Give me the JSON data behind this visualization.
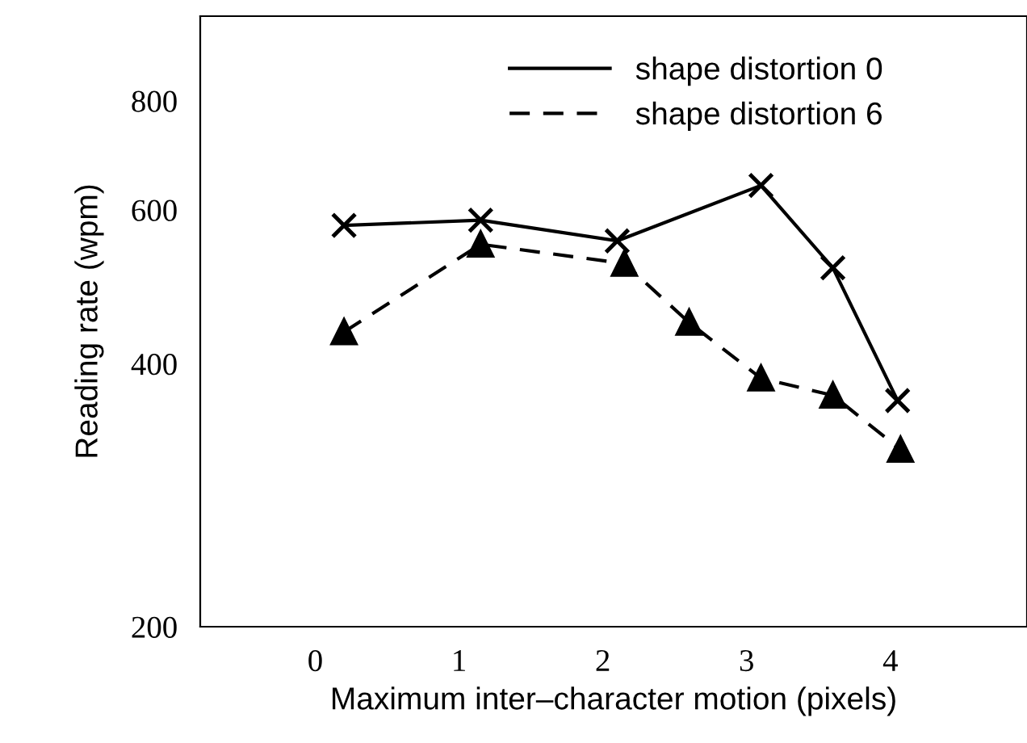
{
  "chart_data": {
    "type": "line",
    "xlabel": "Maximum inter–character motion (pixels)",
    "ylabel": "Reading rate (wpm)",
    "log": "y",
    "xlim": [
      -0.8,
      4.95
    ],
    "ylim": [
      200,
      1000
    ],
    "xticks": [
      0,
      1,
      2,
      3,
      4
    ],
    "yticks": [
      200,
      400,
      600,
      800
    ],
    "grid": false,
    "legend": "top",
    "series": [
      {
        "name": "shape distortion 0",
        "color": "#000000",
        "marker": "cross",
        "line_style": "solid",
        "x": [
          0.2,
          1.15,
          2.1,
          3.1,
          3.6,
          4.05
        ],
        "values": [
          576,
          584,
          553,
          640,
          515,
          363
        ]
      },
      {
        "name": "shape distortion 6",
        "color": "#000000",
        "marker": "triangle",
        "line_style": "dashed",
        "x": [
          0.2,
          1.15,
          2.15,
          2.6,
          3.1,
          3.6,
          4.07
        ],
        "values": [
          435,
          548,
          521,
          446,
          385,
          368,
          319
        ]
      }
    ]
  }
}
